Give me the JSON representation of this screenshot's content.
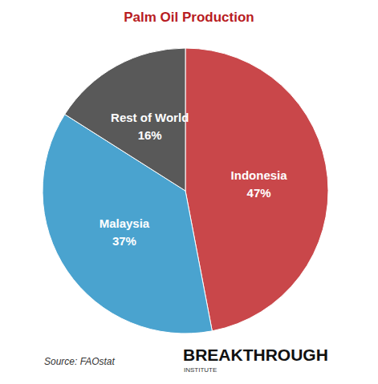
{
  "chart_data": {
    "type": "pie",
    "title": "Palm Oil Production",
    "categories": [
      "Indonesia",
      "Malaysia",
      "Rest of World"
    ],
    "values": [
      47,
      37,
      16
    ],
    "value_labels": [
      "47%",
      "37%",
      "16%"
    ],
    "colors": [
      "#c9474a",
      "#4aa3cf",
      "#595959"
    ],
    "data_labels": true,
    "source": "Source: FAOstat",
    "credit": "BREAKTHROUGH",
    "credit_sub": "INSTITUTE"
  }
}
